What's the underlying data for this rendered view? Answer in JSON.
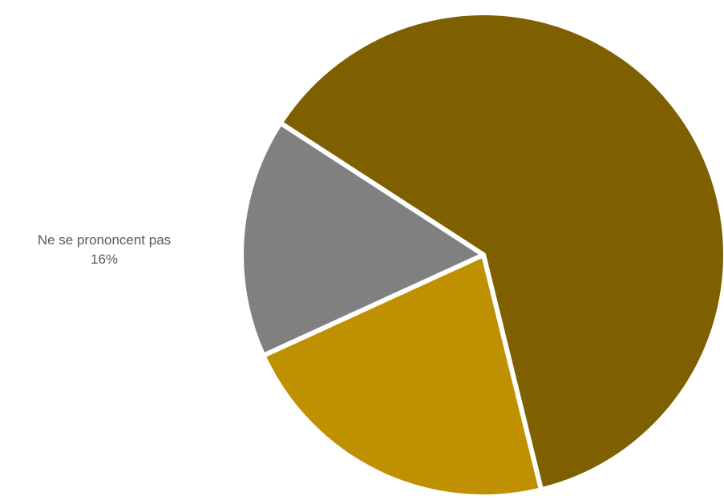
{
  "chart_data": {
    "type": "pie",
    "title": "",
    "slices": [
      {
        "name": "",
        "value": 62,
        "color": "#7f6000"
      },
      {
        "name": "",
        "value": 22,
        "color": "#bf9000"
      },
      {
        "name": "Ne se prononcent pas",
        "value": 16,
        "value_label": "16%",
        "color": "#808080"
      }
    ],
    "legend": "none",
    "separator_color": "#ffffff"
  }
}
